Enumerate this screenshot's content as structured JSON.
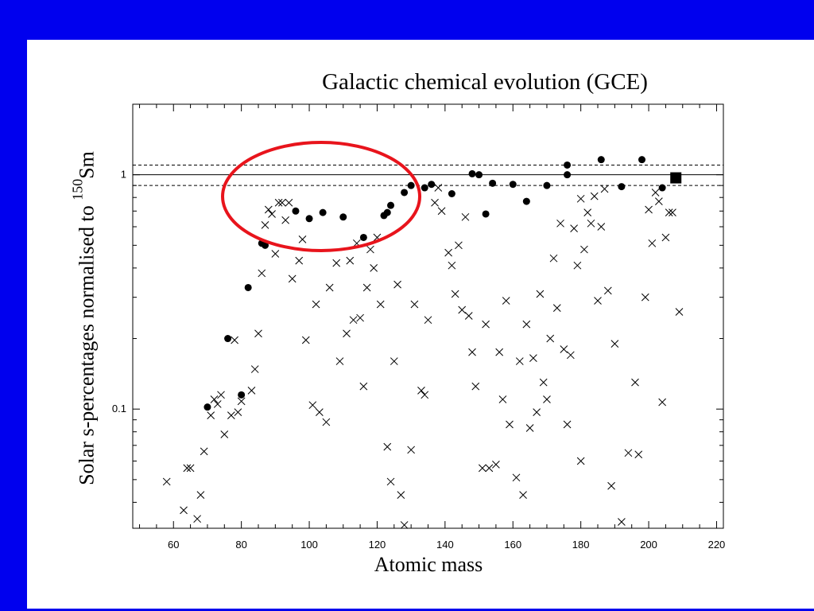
{
  "chart_data": {
    "type": "scatter",
    "title": "Galactic chemical evolution (GCE)",
    "xlabel": "Atomic mass",
    "ylabel": {
      "prefix": "Solar s-percentages normalised to ",
      "sup": "150",
      "element": "Sm"
    },
    "xlim": [
      48,
      222
    ],
    "ylim": [
      0.031,
      2.0
    ],
    "yscale": "log",
    "grid": false,
    "x_ticks": [
      60,
      80,
      100,
      120,
      140,
      160,
      180,
      200,
      220
    ],
    "y_ticks": [
      {
        "value": 0.1,
        "label": "0.1"
      },
      {
        "value": 1,
        "label": "1"
      }
    ],
    "reference_lines": [
      {
        "y": 1.0,
        "style": "solid"
      },
      {
        "y": 1.1,
        "style": "dashed"
      },
      {
        "y": 0.9,
        "style": "dashed"
      }
    ],
    "series": [
      {
        "marker": "filled-circle",
        "points": [
          [
            70,
            0.102
          ],
          [
            76,
            0.2
          ],
          [
            80,
            0.115
          ],
          [
            82,
            0.33
          ],
          [
            86,
            0.51
          ],
          [
            87,
            0.5
          ],
          [
            96,
            0.7
          ],
          [
            100,
            0.65
          ],
          [
            104,
            0.69
          ],
          [
            110,
            0.66
          ],
          [
            116,
            0.54
          ],
          [
            122,
            0.67
          ],
          [
            123,
            0.69
          ],
          [
            124,
            0.74
          ],
          [
            128,
            0.84
          ],
          [
            130,
            0.9
          ],
          [
            134,
            0.88
          ],
          [
            136,
            0.91
          ],
          [
            142,
            0.83
          ],
          [
            148,
            1.01
          ],
          [
            150,
            1.0
          ],
          [
            152,
            0.68
          ],
          [
            154,
            0.92
          ],
          [
            160,
            0.91
          ],
          [
            164,
            0.77
          ],
          [
            170,
            0.9
          ],
          [
            176,
            1.0
          ],
          [
            176,
            1.1
          ],
          [
            186,
            1.16
          ],
          [
            192,
            0.89
          ],
          [
            198,
            1.16
          ],
          [
            204,
            0.88
          ]
        ]
      },
      {
        "marker": "filled-square",
        "points": [
          [
            208,
            0.97
          ]
        ]
      },
      {
        "marker": "cross",
        "points": [
          [
            58,
            0.049
          ],
          [
            63,
            0.037
          ],
          [
            64,
            0.056
          ],
          [
            65,
            0.056
          ],
          [
            67,
            0.034
          ],
          [
            68,
            0.043
          ],
          [
            69,
            0.066
          ],
          [
            71,
            0.094
          ],
          [
            72,
            0.11
          ],
          [
            73,
            0.105
          ],
          [
            74,
            0.115
          ],
          [
            75,
            0.078
          ],
          [
            77,
            0.094
          ],
          [
            78,
            0.197
          ],
          [
            79,
            0.097
          ],
          [
            80,
            0.108
          ],
          [
            83,
            0.12
          ],
          [
            84,
            0.148
          ],
          [
            85,
            0.21
          ],
          [
            86,
            0.38
          ],
          [
            87,
            0.61
          ],
          [
            88,
            0.71
          ],
          [
            89,
            0.68
          ],
          [
            90,
            0.46
          ],
          [
            91,
            0.76
          ],
          [
            92,
            0.76
          ],
          [
            93,
            0.64
          ],
          [
            94,
            0.76
          ],
          [
            95,
            0.36
          ],
          [
            97,
            0.43
          ],
          [
            98,
            0.53
          ],
          [
            99,
            0.197
          ],
          [
            101,
            0.104
          ],
          [
            102,
            0.28
          ],
          [
            103,
            0.097
          ],
          [
            105,
            0.088
          ],
          [
            106,
            0.33
          ],
          [
            108,
            0.42
          ],
          [
            109,
            0.16
          ],
          [
            111,
            0.21
          ],
          [
            112,
            0.43
          ],
          [
            113,
            0.24
          ],
          [
            114,
            0.51
          ],
          [
            115,
            0.245
          ],
          [
            116,
            0.125
          ],
          [
            117,
            0.33
          ],
          [
            118,
            0.48
          ],
          [
            119,
            0.4
          ],
          [
            120,
            0.54
          ],
          [
            121,
            0.28
          ],
          [
            123,
            0.069
          ],
          [
            124,
            0.049
          ],
          [
            125,
            0.16
          ],
          [
            126,
            0.34
          ],
          [
            127,
            0.043
          ],
          [
            128,
            0.032
          ],
          [
            130,
            0.067
          ],
          [
            131,
            0.28
          ],
          [
            133,
            0.12
          ],
          [
            134,
            0.115
          ],
          [
            135,
            0.24
          ],
          [
            137,
            0.76
          ],
          [
            138,
            0.88
          ],
          [
            139,
            0.7
          ],
          [
            141,
            0.465
          ],
          [
            142,
            0.41
          ],
          [
            143,
            0.31
          ],
          [
            144,
            0.5
          ],
          [
            145,
            0.265
          ],
          [
            146,
            0.66
          ],
          [
            147,
            0.25
          ],
          [
            148,
            0.175
          ],
          [
            149,
            0.125
          ],
          [
            151,
            0.056
          ],
          [
            152,
            0.23
          ],
          [
            153,
            0.056
          ],
          [
            155,
            0.058
          ],
          [
            156,
            0.175
          ],
          [
            157,
            0.11
          ],
          [
            158,
            0.29
          ],
          [
            159,
            0.086
          ],
          [
            161,
            0.051
          ],
          [
            162,
            0.16
          ],
          [
            163,
            0.043
          ],
          [
            164,
            0.23
          ],
          [
            165,
            0.083
          ],
          [
            166,
            0.165
          ],
          [
            167,
            0.097
          ],
          [
            168,
            0.31
          ],
          [
            169,
            0.13
          ],
          [
            170,
            0.11
          ],
          [
            171,
            0.2
          ],
          [
            172,
            0.44
          ],
          [
            173,
            0.27
          ],
          [
            174,
            0.62
          ],
          [
            175,
            0.18
          ],
          [
            176,
            0.086
          ],
          [
            177,
            0.17
          ],
          [
            178,
            0.59
          ],
          [
            179,
            0.41
          ],
          [
            180,
            0.79
          ],
          [
            180,
            0.06
          ],
          [
            181,
            0.48
          ],
          [
            182,
            0.69
          ],
          [
            183,
            0.62
          ],
          [
            184,
            0.81
          ],
          [
            185,
            0.29
          ],
          [
            186,
            0.6
          ],
          [
            187,
            0.87
          ],
          [
            188,
            0.32
          ],
          [
            189,
            0.047
          ],
          [
            190,
            0.19
          ],
          [
            192,
            0.033
          ],
          [
            194,
            0.065
          ],
          [
            196,
            0.13
          ],
          [
            197,
            0.064
          ],
          [
            199,
            0.3
          ],
          [
            200,
            0.71
          ],
          [
            201,
            0.51
          ],
          [
            202,
            0.84
          ],
          [
            203,
            0.77
          ],
          [
            204,
            0.107
          ],
          [
            205,
            0.54
          ],
          [
            206,
            0.69
          ],
          [
            207,
            0.69
          ],
          [
            209,
            0.26
          ]
        ]
      }
    ]
  }
}
